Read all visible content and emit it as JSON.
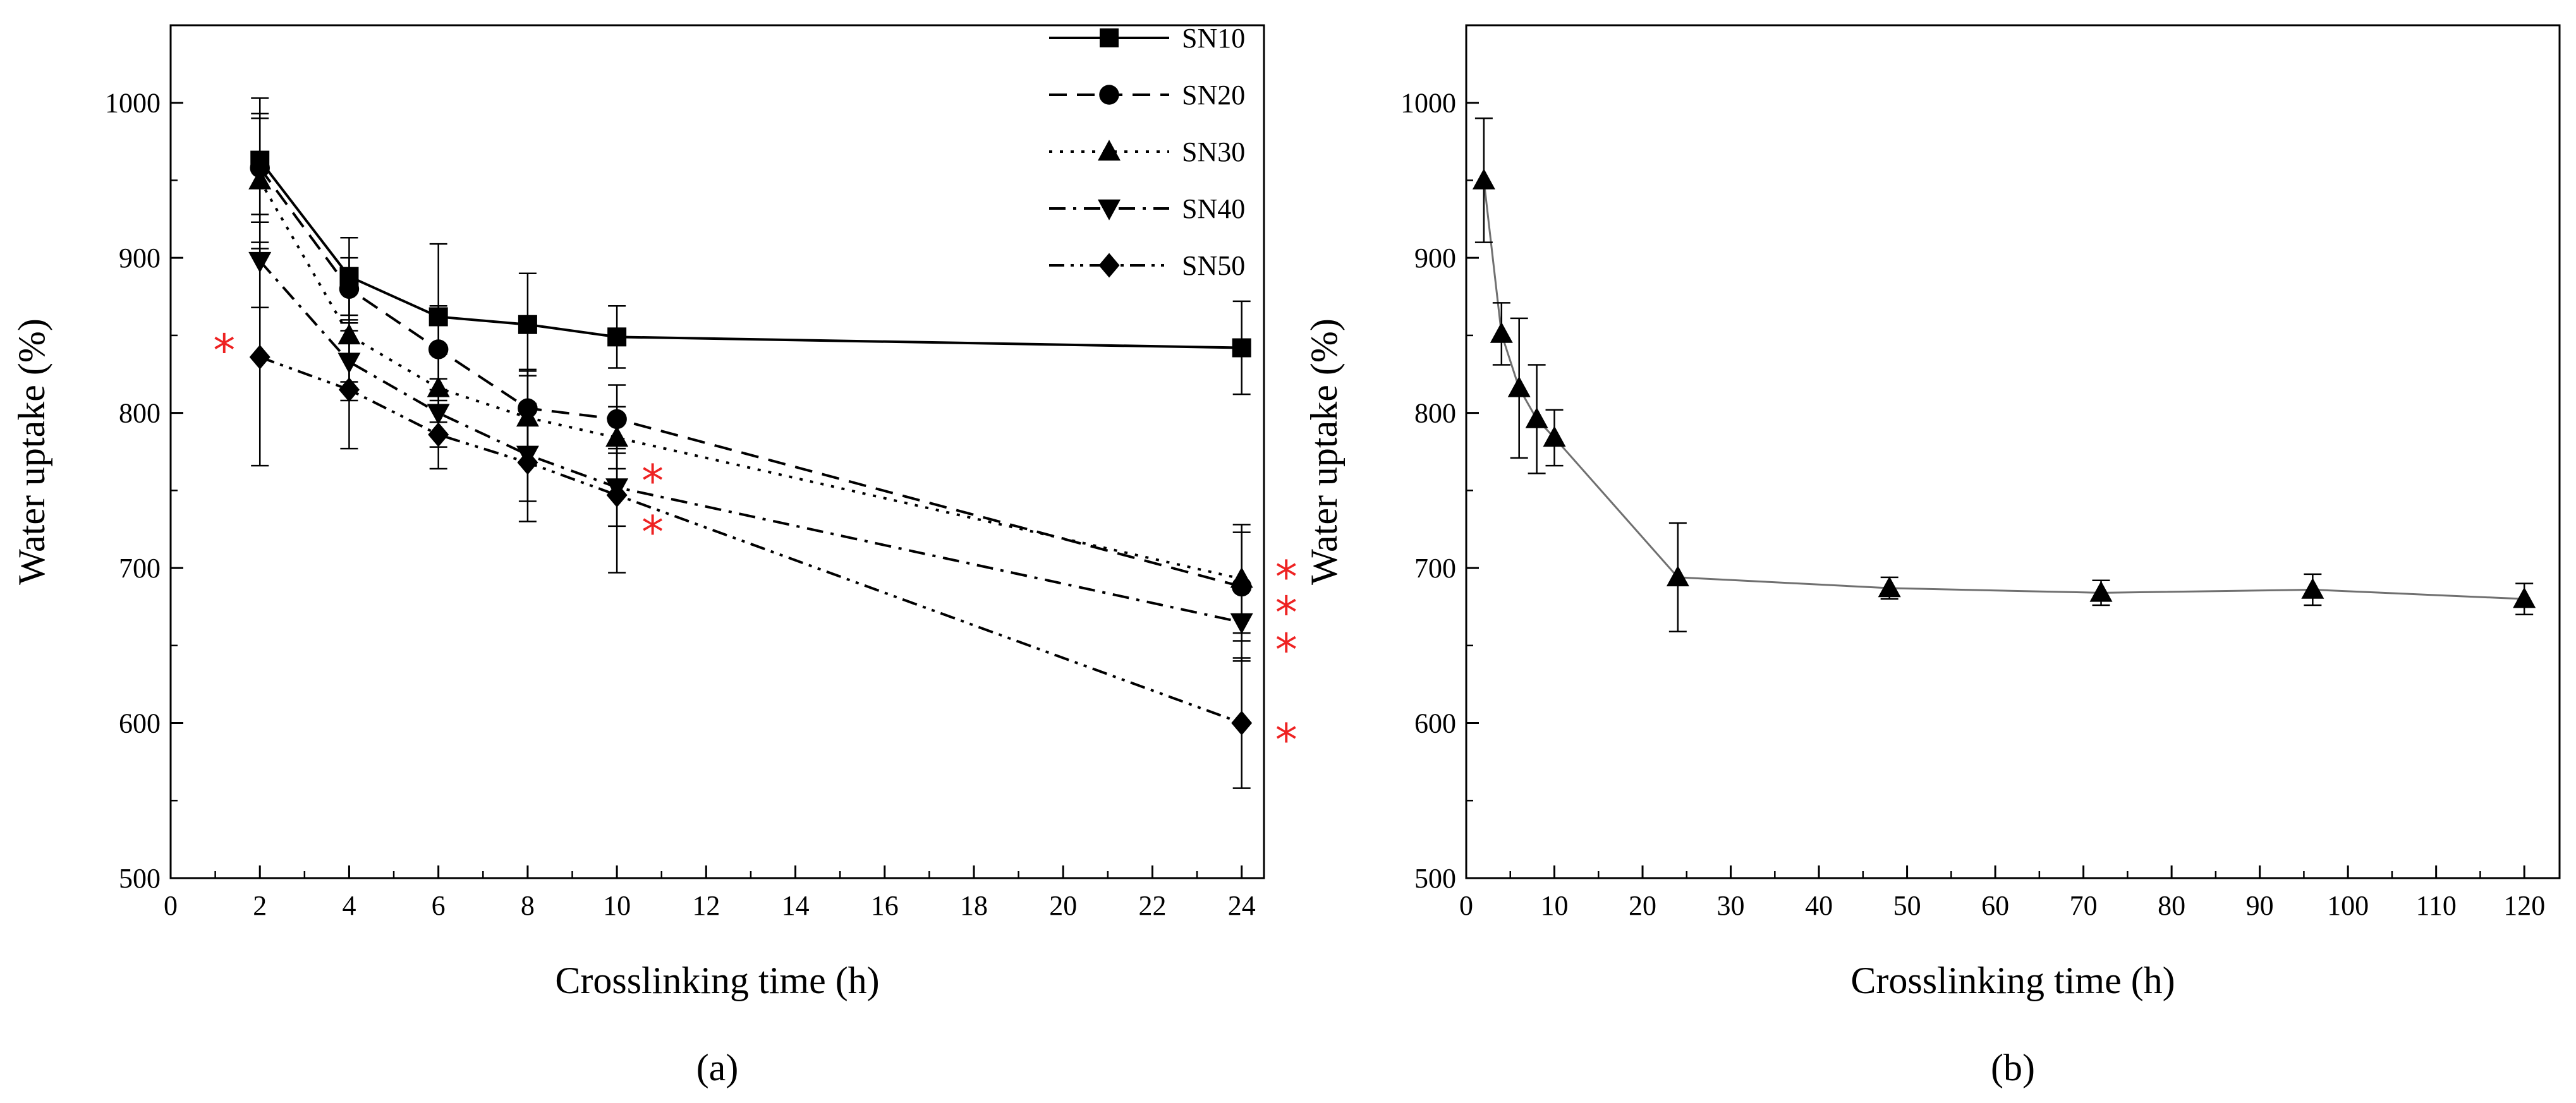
{
  "chart_data": [
    {
      "type": "line",
      "panel_label": "(a)",
      "xlabel": "Crosslinking time (h)",
      "ylabel": "Water uptake (%)",
      "xlim": [
        0,
        24.5
      ],
      "ylim": [
        500,
        1050
      ],
      "xticks": [
        0,
        2,
        4,
        6,
        8,
        10,
        12,
        14,
        16,
        18,
        20,
        22,
        24
      ],
      "yticks": [
        500,
        600,
        700,
        800,
        900,
        1000
      ],
      "legend_position": "top-right",
      "series": [
        {
          "name": "SN10",
          "marker": "square",
          "dash": "solid",
          "x": [
            2,
            4,
            6,
            8,
            10,
            24
          ],
          "y": [
            963,
            888,
            862,
            857,
            849,
            842
          ],
          "err": [
            40,
            25,
            47,
            33,
            20,
            30
          ]
        },
        {
          "name": "SN20",
          "marker": "circle",
          "dash": "dashed",
          "x": [
            2,
            4,
            6,
            8,
            10,
            24
          ],
          "y": [
            958,
            880,
            841,
            803,
            796,
            688
          ],
          "err": [
            35,
            20,
            28,
            25,
            22,
            35
          ]
        },
        {
          "name": "SN30",
          "marker": "triangle-up",
          "dash": "dotted",
          "x": [
            2,
            4,
            6,
            8,
            10,
            24
          ],
          "y": [
            950,
            850,
            816,
            797,
            784,
            693
          ],
          "err": [
            40,
            30,
            22,
            30,
            20,
            35
          ]
        },
        {
          "name": "SN40",
          "marker": "triangle-down",
          "dash": "dash-dot",
          "x": [
            2,
            4,
            6,
            8,
            10,
            24
          ],
          "y": [
            898,
            833,
            800,
            773,
            752,
            665
          ],
          "err": [
            30,
            25,
            22,
            30,
            25,
            25
          ]
        },
        {
          "name": "SN50",
          "marker": "diamond",
          "dash": "dash-dot-dot",
          "x": [
            2,
            4,
            6,
            8,
            10,
            24
          ],
          "y": [
            836,
            815,
            786,
            768,
            747,
            600
          ],
          "err": [
            70,
            38,
            22,
            38,
            50,
            42
          ]
        }
      ],
      "annotations": [
        {
          "text": "*",
          "x": 1.2,
          "y": 845
        },
        {
          "text": "*",
          "x": 10.8,
          "y": 761
        },
        {
          "text": "*",
          "x": 10.8,
          "y": 728
        },
        {
          "text": "*",
          "x": 25.0,
          "y": 699
        },
        {
          "text": "*",
          "x": 25.0,
          "y": 676
        },
        {
          "text": "*",
          "x": 25.0,
          "y": 652
        },
        {
          "text": "*",
          "x": 25.0,
          "y": 594
        }
      ]
    },
    {
      "type": "line",
      "panel_label": "(b)",
      "xlabel": "Crosslinking time (h)",
      "ylabel": "Water uptake (%)",
      "xlim": [
        0,
        124
      ],
      "ylim": [
        500,
        1050
      ],
      "xticks": [
        0,
        10,
        20,
        30,
        40,
        50,
        60,
        70,
        80,
        90,
        100,
        110,
        120
      ],
      "yticks": [
        500,
        600,
        700,
        800,
        900,
        1000
      ],
      "series": [
        {
          "name": "SN30",
          "marker": "triangle-up",
          "dash": "solid",
          "x": [
            2,
            4,
            6,
            8,
            10,
            24,
            48,
            72,
            96,
            120
          ],
          "y": [
            950,
            851,
            816,
            796,
            784,
            694,
            687,
            684,
            686,
            680
          ],
          "err": [
            40,
            20,
            45,
            35,
            18,
            35,
            7,
            8,
            10,
            10
          ]
        }
      ]
    }
  ]
}
